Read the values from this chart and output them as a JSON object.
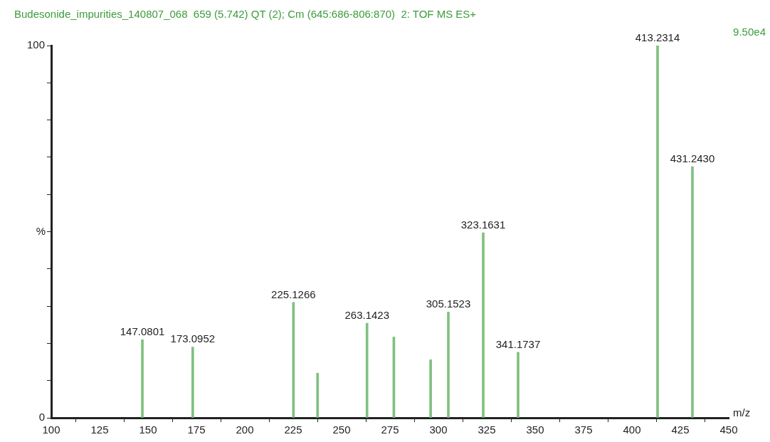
{
  "chart_data": {
    "type": "bar",
    "title": "Budesonide_impurities_140807_068  659 (5.742) QT (2); Cm (645:686-806:870)  2: TOF MS ES+",
    "annotations": [
      "9.50e4"
    ],
    "xlabel": "m/z",
    "ylabel": "%",
    "x": [
      147.0801,
      173.0952,
      225.1266,
      237.6,
      263.1423,
      277,
      296,
      305.1523,
      323.1631,
      341.1737,
      413.2314,
      431.243
    ],
    "series": [
      {
        "color": "#80c080",
        "values": [
          21,
          19,
          31,
          12,
          25.4,
          21.7,
          15.6,
          28.4,
          49.7,
          17.6,
          100,
          67.5
        ]
      }
    ],
    "value_labels": [
      "147.0801",
      "173.0952",
      "225.1266",
      null,
      "263.1423",
      null,
      null,
      "305.1523",
      "323.1631",
      "341.1737",
      "413.2314",
      "431.2430"
    ],
    "xlim": [
      100,
      450
    ],
    "xticks": [
      100,
      125,
      150,
      175,
      200,
      225,
      250,
      275,
      300,
      325,
      350,
      375,
      400,
      425,
      450
    ],
    "ylim": [
      0,
      100
    ],
    "yticks": [
      0,
      {
        "value": 10,
        "label": null
      },
      {
        "value": 20,
        "label": null
      },
      {
        "value": 30,
        "label": null
      },
      {
        "value": 40,
        "label": null
      },
      {
        "value": 50,
        "label": null
      },
      {
        "value": 60,
        "label": null
      },
      {
        "value": 70,
        "label": null
      },
      {
        "value": 80,
        "label": null
      },
      {
        "value": 90,
        "label": null
      },
      100
    ],
    "grid": false,
    "legend": false
  }
}
